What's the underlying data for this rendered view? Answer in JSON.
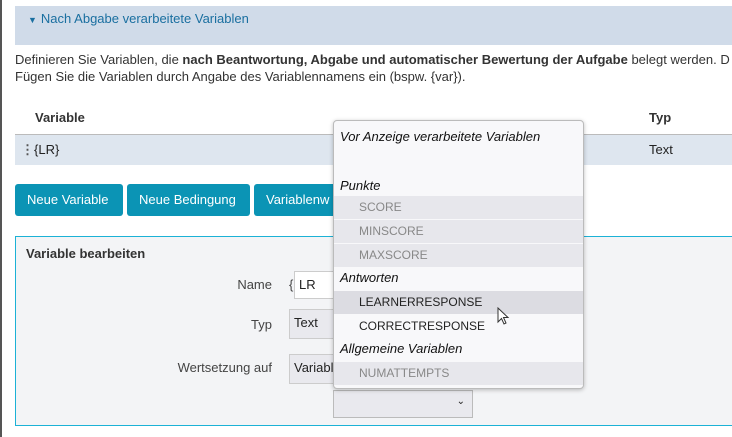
{
  "section": {
    "title": "Nach Abgabe verarbeitete Variablen"
  },
  "description": {
    "pre": "Definieren Sie Variablen, die ",
    "bold": "nach Beantwortung, Abgabe und automatischer Bewertung der Aufgabe",
    "post": " belegt werden. D",
    "line2": "Fügen Sie die Variablen durch Angabe des Variablennamens ein (bspw. {var})."
  },
  "table": {
    "headers": [
      "Variable",
      "Typ"
    ],
    "rows": [
      {
        "variable": "{LR}",
        "type": "Text"
      }
    ]
  },
  "buttons": {
    "new_variable": "Neue Variable",
    "new_condition": "Neue Bedingung",
    "variable_value": "Variablenw"
  },
  "panel": {
    "title": "Variable bearbeiten",
    "name_label": "Name",
    "name_prefix": "{",
    "name_value": "LR",
    "type_label": "Typ",
    "type_value": "Text",
    "assign_label": "Wertsetzung auf",
    "assign_value": "Variable"
  },
  "dropdown": {
    "groups": [
      {
        "label": "Vor Anzeige verarbeitete Variablen",
        "options": []
      },
      {
        "label": "Punkte",
        "options": [
          {
            "label": "SCORE",
            "disabled": true
          },
          {
            "label": "MINSCORE",
            "disabled": true
          },
          {
            "label": "MAXSCORE",
            "disabled": true
          }
        ]
      },
      {
        "label": "Antworten",
        "options": [
          {
            "label": "LEARNERRESPONSE",
            "hovered": true
          },
          {
            "label": "CORRECTRESPONSE"
          }
        ]
      },
      {
        "label": "Allgemeine Variablen",
        "options": [
          {
            "label": "NUMATTEMPTS",
            "disabled": true
          }
        ]
      }
    ]
  }
}
